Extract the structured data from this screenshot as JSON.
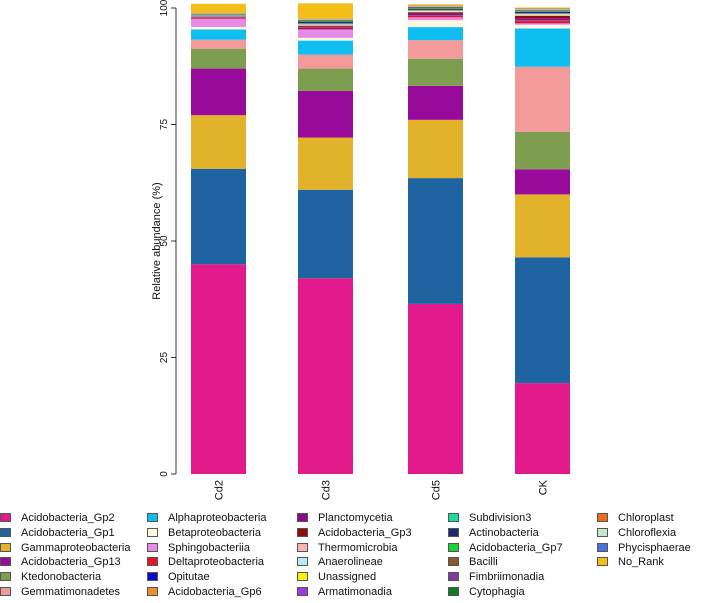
{
  "chart_data": {
    "type": "bar",
    "stacked": true,
    "title": "",
    "xlabel": "",
    "ylabel": "Relative abundance (%)",
    "ylim": [
      0,
      100
    ],
    "yticks": [
      "0",
      "25",
      "50",
      "75",
      "100"
    ],
    "categories": [
      "Cd2",
      "Cd3",
      "Cd5",
      "CK"
    ],
    "legend_position": "bottom",
    "series": [
      {
        "name": "Acidobacteria_Gp2",
        "color": "#E31A8B",
        "values": [
          45.0,
          42.0,
          36.5,
          19.5
        ]
      },
      {
        "name": "Acidobacteria_Gp1",
        "color": "#1F63A0",
        "values": [
          20.5,
          19.0,
          27.0,
          27.0
        ]
      },
      {
        "name": "Gammaproteobacteria",
        "color": "#E3B22B",
        "values": [
          11.5,
          11.2,
          12.5,
          13.5
        ]
      },
      {
        "name": "Acidobacteria_Gp13",
        "color": "#980B9A",
        "values": [
          10.0,
          10.0,
          7.3,
          5.4
        ]
      },
      {
        "name": "Ktedonobacteria",
        "color": "#7D9E4E",
        "values": [
          4.2,
          4.8,
          5.8,
          8.0
        ]
      },
      {
        "name": "Gemmatimonadetes",
        "color": "#F2999A",
        "values": [
          2.0,
          3.0,
          4.0,
          14.0
        ]
      },
      {
        "name": "Alphaproteobacteria",
        "color": "#0FBEF0",
        "values": [
          2.2,
          3.0,
          2.8,
          8.2
        ]
      },
      {
        "name": "Betaproteobacteria",
        "color": "#FFF8DC",
        "values": [
          0.5,
          0.6,
          1.5,
          0.8
        ]
      },
      {
        "name": "Sphingobacteriia",
        "color": "#E58CE8",
        "values": [
          1.8,
          1.8,
          0.6,
          0.3
        ]
      },
      {
        "name": "Deltaproteobacteria",
        "color": "#E0152A",
        "values": [
          0.2,
          0.2,
          0.3,
          0.5
        ]
      },
      {
        "name": "Opitutae",
        "color": "#0A0ACD",
        "values": [
          0.05,
          0.1,
          0.1,
          0.1
        ]
      },
      {
        "name": "Acidobacteria_Gp6",
        "color": "#F18B32",
        "values": [
          0.05,
          0.1,
          0.1,
          0.1
        ]
      },
      {
        "name": "Planctomycetia",
        "color": "#8B0A8E",
        "values": [
          0.1,
          0.2,
          0.3,
          0.4
        ]
      },
      {
        "name": "Acidobacteria_Gp3",
        "color": "#900D0D",
        "values": [
          0.1,
          0.2,
          0.3,
          0.5
        ]
      },
      {
        "name": "Thermomicrobia",
        "color": "#F5B5B0",
        "values": [
          0.05,
          0.1,
          0.1,
          0.2
        ]
      },
      {
        "name": "Anaerolineae",
        "color": "#B3ECF8",
        "values": [
          0.05,
          0.1,
          0.1,
          0.1
        ]
      },
      {
        "name": "Unassigned",
        "color": "#F6F00B",
        "values": [
          0.05,
          0.1,
          0.1,
          0.1
        ]
      },
      {
        "name": "Armatimonadia",
        "color": "#9A3DDF",
        "values": [
          0.05,
          0.1,
          0.1,
          0.1
        ]
      },
      {
        "name": "Subdivision3",
        "color": "#1BDA9B",
        "values": [
          0.05,
          0.1,
          0.1,
          0.1
        ]
      },
      {
        "name": "Actinobacteria",
        "color": "#1E2A6E",
        "values": [
          0.1,
          0.3,
          0.2,
          0.3
        ]
      },
      {
        "name": "Acidobacteria_Gp7",
        "color": "#16D534",
        "values": [
          0.05,
          0.1,
          0.1,
          0.1
        ]
      },
      {
        "name": "Bacilli",
        "color": "#8A5A2F",
        "values": [
          0.05,
          0.1,
          0.1,
          0.1
        ]
      },
      {
        "name": "Fimbriimonadia",
        "color": "#7E3A9E",
        "values": [
          0.05,
          0.1,
          0.1,
          0.1
        ]
      },
      {
        "name": "Cytophagia",
        "color": "#0F7A22",
        "values": [
          0.05,
          0.1,
          0.1,
          0.1
        ]
      },
      {
        "name": "Chloroplast",
        "color": "#F26A1B",
        "values": [
          0.05,
          0.1,
          0.1,
          0.1
        ]
      },
      {
        "name": "Chloroflexia",
        "color": "#C2E8C4",
        "values": [
          0.05,
          0.1,
          0.1,
          0.1
        ]
      },
      {
        "name": "Phycisphaerae",
        "color": "#4A73D8",
        "values": [
          0.05,
          0.1,
          0.1,
          0.1
        ]
      },
      {
        "name": "No_Rank",
        "color": "#F2BE17",
        "values": [
          2.0,
          3.3,
          0.3,
          0.2
        ]
      }
    ]
  }
}
